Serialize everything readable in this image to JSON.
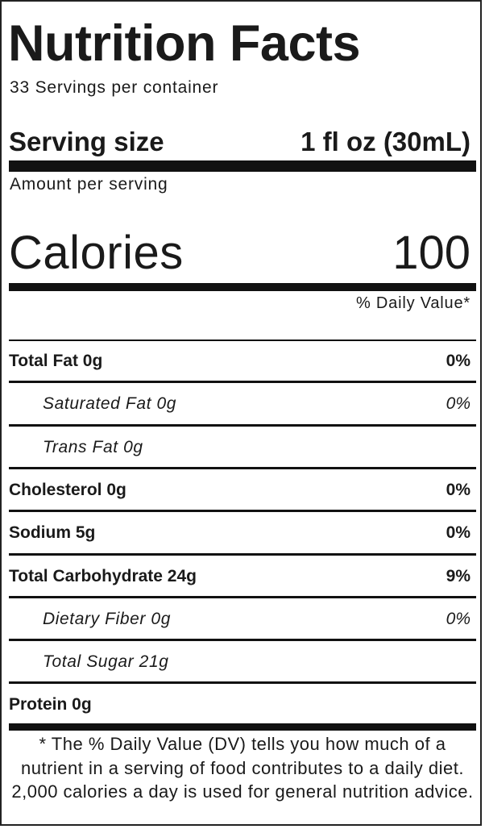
{
  "title": "Nutrition Facts",
  "servings_per_container": "33 Servings per container",
  "serving_size": {
    "label": "Serving size",
    "value": "1 fl oz (30mL)"
  },
  "amount_per_serving": "Amount per serving",
  "calories": {
    "label": "Calories",
    "value": "100"
  },
  "daily_value_header": "% Daily Value*",
  "nutrients": [
    {
      "name": "Total Fat 0g",
      "dv": "0%"
    },
    {
      "name": "Saturated Fat 0g",
      "dv": "0%"
    },
    {
      "name": "Trans Fat 0g",
      "dv": ""
    },
    {
      "name": "Cholesterol 0g",
      "dv": "0%"
    },
    {
      "name": "Sodium 5g",
      "dv": "0%"
    },
    {
      "name": "Total Carbohydrate 24g",
      "dv": "9%"
    },
    {
      "name": "Dietary Fiber 0g",
      "dv": "0%"
    },
    {
      "name": "Total Sugar 21g",
      "dv": ""
    },
    {
      "name": "Protein 0g",
      "dv": ""
    }
  ],
  "footnote": "* The % Daily Value (DV) tells you how much of a nutrient in a serving of food contributes to a daily diet. 2,000 calories a day is used for general nutrition advice."
}
